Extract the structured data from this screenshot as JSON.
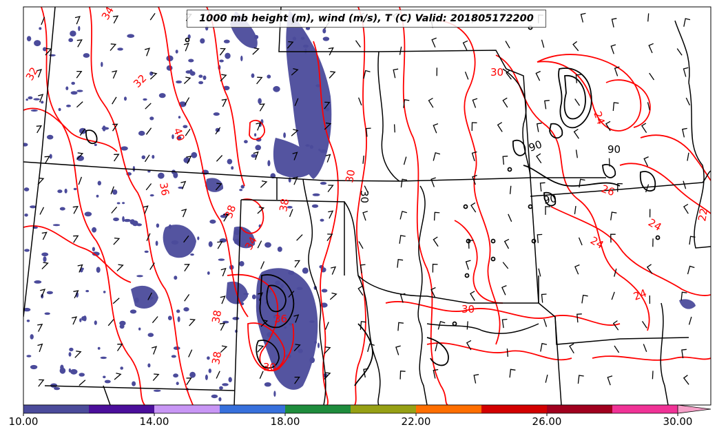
{
  "title": "1000 mb height (m), wind (m/s), T (C) Valid: 201805172200",
  "colorbar": {
    "tick_labels": [
      "10.00",
      "14.00",
      "18.00",
      "22.00",
      "26.00",
      "30.00"
    ],
    "colors": [
      "#4b4b9b",
      "#4b0f9b",
      "#c896f5",
      "#3770dc",
      "#1e8c3c",
      "#96a014",
      "#ff6e00",
      "#d20000",
      "#a0001e",
      "#f03296",
      "#f5a0c8"
    ]
  },
  "contour_labels": {
    "temperature": [
      "34",
      "32",
      "32",
      "40",
      "36",
      "38",
      "38",
      "38",
      "38",
      "30",
      "30",
      "34",
      "36",
      "30",
      "24",
      "24",
      "26",
      "24",
      "22",
      "24",
      "30"
    ],
    "height": [
      "90",
      "90",
      "90",
      "30"
    ]
  },
  "colors": {
    "temperature_contour": "#ff0000",
    "height_contour": "#000000",
    "wind_fill": "#4b4b9b",
    "state_borders": "#000000"
  }
}
